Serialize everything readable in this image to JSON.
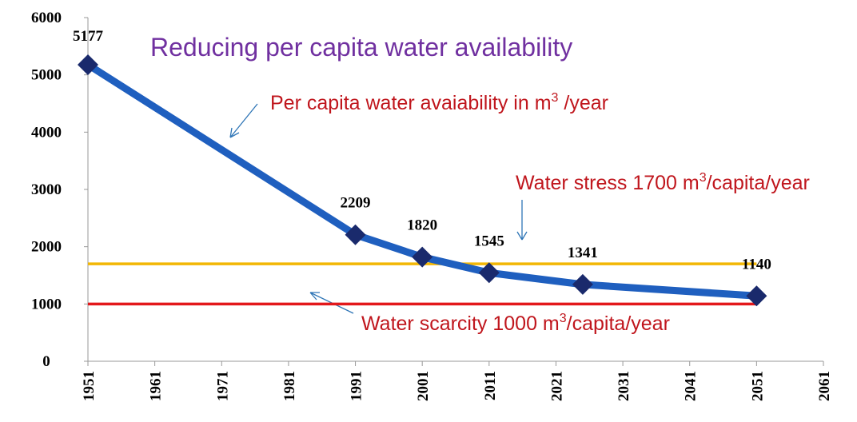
{
  "chart_data": {
    "type": "line",
    "title": "Reducing per capita water availability",
    "x": [
      1951,
      1991,
      2001,
      2011,
      2025,
      2051
    ],
    "series": [
      {
        "name": "Per capita water availability",
        "color": "#1f5fbf",
        "values": [
          5177,
          2209,
          1820,
          1545,
          1341,
          1140
        ]
      }
    ],
    "marker_color": "#1a2a6c",
    "xlim": [
      1951,
      2061
    ],
    "xticks": [
      1951,
      1961,
      1971,
      1981,
      1991,
      2001,
      2011,
      2021,
      2031,
      2041,
      2051,
      2061
    ],
    "ylim": [
      0,
      6000
    ],
    "yticks": [
      0,
      1000,
      2000,
      3000,
      4000,
      5000,
      6000
    ],
    "reference_lines": [
      {
        "value": 1700,
        "color": "#f2b705",
        "xlim": [
          1951,
          2051
        ],
        "label": [
          "Water stress 1700 m",
          "3",
          "/capita/year"
        ]
      },
      {
        "value": 1000,
        "color": "#e3181b",
        "xlim": [
          1951,
          2051
        ],
        "label": [
          "Water scarcity 1000 m",
          "3",
          "/capita/year"
        ]
      }
    ],
    "annotation": [
      "Per capita water avaiability  in m",
      "3",
      " /year"
    ]
  }
}
